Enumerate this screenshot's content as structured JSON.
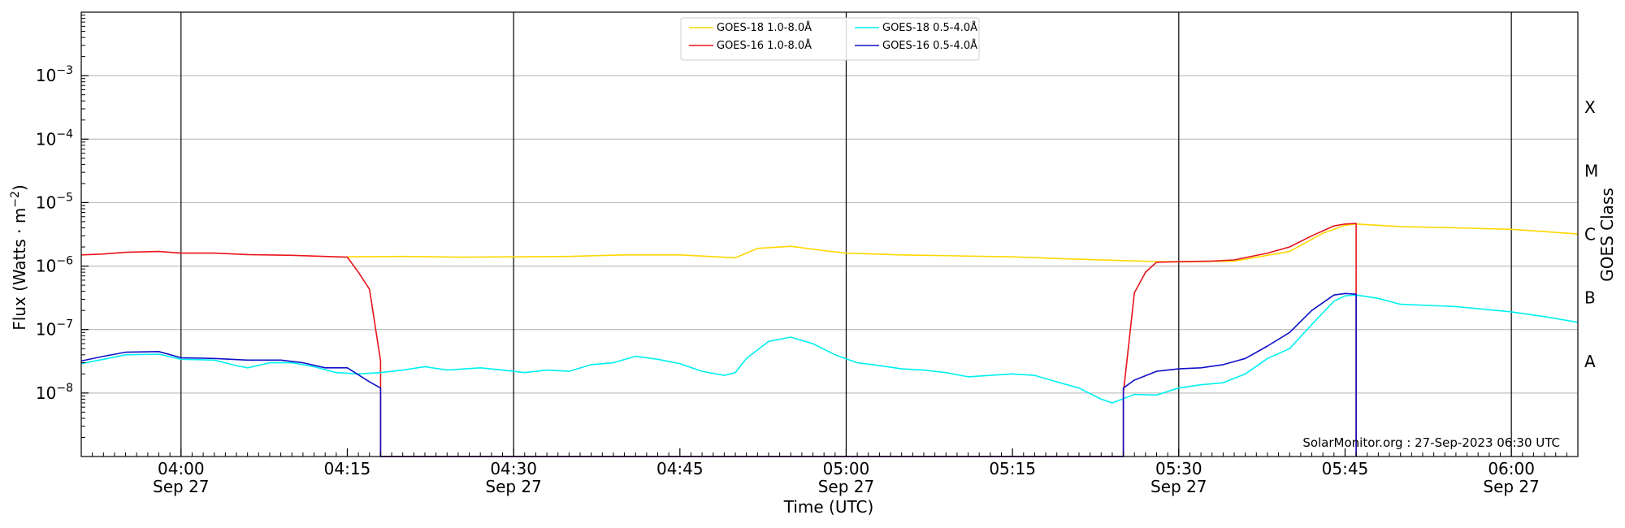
{
  "chart_data": {
    "type": "line",
    "title": "",
    "xlabel": "Time (UTC)",
    "ylabel": "Flux (Watts · m",
    "ylabel_sup": "−2",
    "ylabel_close": ")",
    "y2label": "GOES Class",
    "yscale": "log",
    "ylim": [
      1e-09,
      0.01
    ],
    "xlim": [
      "03:51",
      "06:06"
    ],
    "grid": "horizontal",
    "legend_position": "top-center",
    "watermark": "SolarMonitor.org : 27-Sep-2023 06:30 UTC",
    "x_ticks": [
      {
        "time": "04:00",
        "label": "04:00",
        "date": "Sep 27"
      },
      {
        "time": "04:15",
        "label": "04:15",
        "date": ""
      },
      {
        "time": "04:30",
        "label": "04:30",
        "date": "Sep 27"
      },
      {
        "time": "04:45",
        "label": "04:45",
        "date": ""
      },
      {
        "time": "05:00",
        "label": "05:00",
        "date": "Sep 27"
      },
      {
        "time": "05:15",
        "label": "05:15",
        "date": ""
      },
      {
        "time": "05:30",
        "label": "05:30",
        "date": "Sep 27"
      },
      {
        "time": "05:45",
        "label": "05:45",
        "date": ""
      },
      {
        "time": "06:00",
        "label": "06:00",
        "date": "Sep 27"
      }
    ],
    "vertical_lines": [
      "04:00",
      "04:30",
      "05:00",
      "05:30",
      "06:00"
    ],
    "y_ticks": [
      {
        "value": 1e-08,
        "base": "10",
        "exp": "−8"
      },
      {
        "value": 1e-07,
        "base": "10",
        "exp": "−7"
      },
      {
        "value": 1e-06,
        "base": "10",
        "exp": "−6"
      },
      {
        "value": 1e-05,
        "base": "10",
        "exp": "−5"
      },
      {
        "value": 0.0001,
        "base": "10",
        "exp": "−4"
      },
      {
        "value": 0.001,
        "base": "10",
        "exp": "−3"
      }
    ],
    "goes_classes": [
      {
        "label": "A",
        "value": 3.16e-08
      },
      {
        "label": "B",
        "value": 3.16e-07
      },
      {
        "label": "C",
        "value": 3.16e-06
      },
      {
        "label": "M",
        "value": 3.16e-05
      },
      {
        "label": "X",
        "value": 0.000316
      }
    ],
    "legend": [
      {
        "name": "GOES-18 1.0-8.0Å",
        "color": "#ffd700",
        "column": 0,
        "row": 0
      },
      {
        "name": "GOES-16 1.0-8.0Å",
        "color": "#e8141a",
        "column": 0,
        "row": 1
      },
      {
        "name": "GOES-18 0.5-4.0Å",
        "color": "#00f0f0",
        "column": 1,
        "row": 0
      },
      {
        "name": "GOES-16 0.5-4.0Å",
        "color": "#1010c8",
        "column": 1,
        "row": 1
      }
    ],
    "series": [
      {
        "name": "GOES-18 1.0-8.0Å",
        "color": "#ffd700",
        "points": [
          [
            "04:15",
            1.4e-06
          ],
          [
            "04:20",
            1.42e-06
          ],
          [
            "04:25",
            1.38e-06
          ],
          [
            "04:30",
            1.4e-06
          ],
          [
            "04:35",
            1.42e-06
          ],
          [
            "04:40",
            1.5e-06
          ],
          [
            "04:45",
            1.5e-06
          ],
          [
            "04:50",
            1.35e-06
          ],
          [
            "04:52",
            1.9e-06
          ],
          [
            "04:55",
            2.05e-06
          ],
          [
            "04:58",
            1.75e-06
          ],
          [
            "05:00",
            1.6e-06
          ],
          [
            "05:05",
            1.5e-06
          ],
          [
            "05:10",
            1.45e-06
          ],
          [
            "05:15",
            1.4e-06
          ],
          [
            "05:20",
            1.3e-06
          ],
          [
            "05:25",
            1.22e-06
          ],
          [
            "05:28",
            1.18e-06
          ],
          [
            "05:30",
            1.17e-06
          ],
          [
            "05:35",
            1.2e-06
          ],
          [
            "05:40",
            1.7e-06
          ],
          [
            "05:43",
            3.3e-06
          ],
          [
            "05:45",
            4.4e-06
          ],
          [
            "05:46",
            4.6e-06
          ],
          [
            "05:50",
            4.2e-06
          ],
          [
            "05:55",
            4e-06
          ],
          [
            "06:00",
            3.8e-06
          ],
          [
            "06:03",
            3.5e-06
          ],
          [
            "06:06",
            3.2e-06
          ]
        ]
      },
      {
        "name": "GOES-16 1.0-8.0Å",
        "color": "#e8141a",
        "points": [
          [
            "03:51",
            1.5e-06
          ],
          [
            "03:53",
            1.55e-06
          ],
          [
            "03:55",
            1.65e-06
          ],
          [
            "03:58",
            1.7e-06
          ],
          [
            "04:00",
            1.6e-06
          ],
          [
            "04:03",
            1.6e-06
          ],
          [
            "04:06",
            1.52e-06
          ],
          [
            "04:10",
            1.48e-06
          ],
          [
            "04:13",
            1.42e-06
          ],
          [
            "04:15",
            1.38e-06
          ],
          [
            "04:16",
            8e-07
          ],
          [
            "04:17",
            4.3e-07
          ],
          [
            "04:18",
            3.2e-08
          ],
          [
            "04:18",
            1e-09
          ],
          [
            "05:25",
            1e-09
          ],
          [
            "05:25",
            1e-08
          ],
          [
            "05:26",
            3.8e-07
          ],
          [
            "05:27",
            8e-07
          ],
          [
            "05:28",
            1.15e-06
          ],
          [
            "05:30",
            1.17e-06
          ],
          [
            "05:33",
            1.2e-06
          ],
          [
            "05:35",
            1.25e-06
          ],
          [
            "05:38",
            1.6e-06
          ],
          [
            "05:40",
            2e-06
          ],
          [
            "05:42",
            3e-06
          ],
          [
            "05:44",
            4.3e-06
          ],
          [
            "05:45",
            4.6e-06
          ],
          [
            "05:46",
            4.7e-06
          ],
          [
            "05:46",
            1e-09
          ]
        ]
      },
      {
        "name": "GOES-18 0.5-4.0Å",
        "color": "#00f0f0",
        "points": [
          [
            "03:51",
            2.9e-08
          ],
          [
            "03:53",
            3.4e-08
          ],
          [
            "03:55",
            4e-08
          ],
          [
            "03:58",
            4.1e-08
          ],
          [
            "04:00",
            3.4e-08
          ],
          [
            "04:03",
            3.3e-08
          ],
          [
            "04:05",
            2.7e-08
          ],
          [
            "04:06",
            2.5e-08
          ],
          [
            "04:08",
            3e-08
          ],
          [
            "04:10",
            3e-08
          ],
          [
            "04:12",
            2.6e-08
          ],
          [
            "04:14",
            2.1e-08
          ],
          [
            "04:16",
            2e-08
          ],
          [
            "04:18",
            2.1e-08
          ],
          [
            "04:20",
            2.3e-08
          ],
          [
            "04:22",
            2.6e-08
          ],
          [
            "04:24",
            2.3e-08
          ],
          [
            "04:27",
            2.5e-08
          ],
          [
            "04:29",
            2.3e-08
          ],
          [
            "04:31",
            2.1e-08
          ],
          [
            "04:33",
            2.3e-08
          ],
          [
            "04:35",
            2.2e-08
          ],
          [
            "04:37",
            2.8e-08
          ],
          [
            "04:39",
            3e-08
          ],
          [
            "04:41",
            3.8e-08
          ],
          [
            "04:43",
            3.4e-08
          ],
          [
            "04:45",
            2.9e-08
          ],
          [
            "04:47",
            2.2e-08
          ],
          [
            "04:49",
            1.9e-08
          ],
          [
            "04:50",
            2.1e-08
          ],
          [
            "04:51",
            3.5e-08
          ],
          [
            "04:53",
            6.5e-08
          ],
          [
            "04:55",
            7.6e-08
          ],
          [
            "04:57",
            6e-08
          ],
          [
            "04:59",
            4e-08
          ],
          [
            "05:01",
            3e-08
          ],
          [
            "05:03",
            2.7e-08
          ],
          [
            "05:05",
            2.4e-08
          ],
          [
            "05:07",
            2.3e-08
          ],
          [
            "05:09",
            2.1e-08
          ],
          [
            "05:11",
            1.8e-08
          ],
          [
            "05:13",
            1.9e-08
          ],
          [
            "05:15",
            2e-08
          ],
          [
            "05:17",
            1.9e-08
          ],
          [
            "05:19",
            1.5e-08
          ],
          [
            "05:21",
            1.2e-08
          ],
          [
            "05:23",
            8e-09
          ],
          [
            "05:24",
            7e-09
          ],
          [
            "05:26",
            9.5e-09
          ],
          [
            "05:28",
            9.3e-09
          ],
          [
            "05:30",
            1.2e-08
          ],
          [
            "05:32",
            1.35e-08
          ],
          [
            "05:34",
            1.45e-08
          ],
          [
            "05:36",
            2e-08
          ],
          [
            "05:38",
            3.5e-08
          ],
          [
            "05:40",
            5e-08
          ],
          [
            "05:42",
            1.2e-07
          ],
          [
            "05:44",
            2.8e-07
          ],
          [
            "05:45",
            3.4e-07
          ],
          [
            "05:46",
            3.5e-07
          ],
          [
            "05:48",
            3.1e-07
          ],
          [
            "05:50",
            2.5e-07
          ],
          [
            "05:55",
            2.3e-07
          ],
          [
            "06:00",
            1.9e-07
          ],
          [
            "06:03",
            1.6e-07
          ],
          [
            "06:06",
            1.3e-07
          ]
        ]
      },
      {
        "name": "GOES-16 0.5-4.0Å",
        "color": "#1010c8",
        "points": [
          [
            "03:51",
            3.2e-08
          ],
          [
            "03:53",
            3.8e-08
          ],
          [
            "03:55",
            4.4e-08
          ],
          [
            "03:58",
            4.5e-08
          ],
          [
            "04:00",
            3.6e-08
          ],
          [
            "04:03",
            3.5e-08
          ],
          [
            "04:06",
            3.3e-08
          ],
          [
            "04:09",
            3.3e-08
          ],
          [
            "04:11",
            3e-08
          ],
          [
            "04:13",
            2.5e-08
          ],
          [
            "04:15",
            2.5e-08
          ],
          [
            "04:17",
            1.5e-08
          ],
          [
            "04:18",
            1.2e-08
          ],
          [
            "04:18",
            1e-09
          ],
          [
            "05:25",
            1e-09
          ],
          [
            "05:25",
            1.2e-08
          ],
          [
            "05:26",
            1.6e-08
          ],
          [
            "05:28",
            2.2e-08
          ],
          [
            "05:30",
            2.4e-08
          ],
          [
            "05:32",
            2.5e-08
          ],
          [
            "05:34",
            2.8e-08
          ],
          [
            "05:36",
            3.5e-08
          ],
          [
            "05:38",
            5.5e-08
          ],
          [
            "05:40",
            9e-08
          ],
          [
            "05:42",
            2e-07
          ],
          [
            "05:44",
            3.5e-07
          ],
          [
            "05:45",
            3.7e-07
          ],
          [
            "05:46",
            3.6e-07
          ],
          [
            "05:46",
            1e-09
          ]
        ]
      }
    ]
  }
}
